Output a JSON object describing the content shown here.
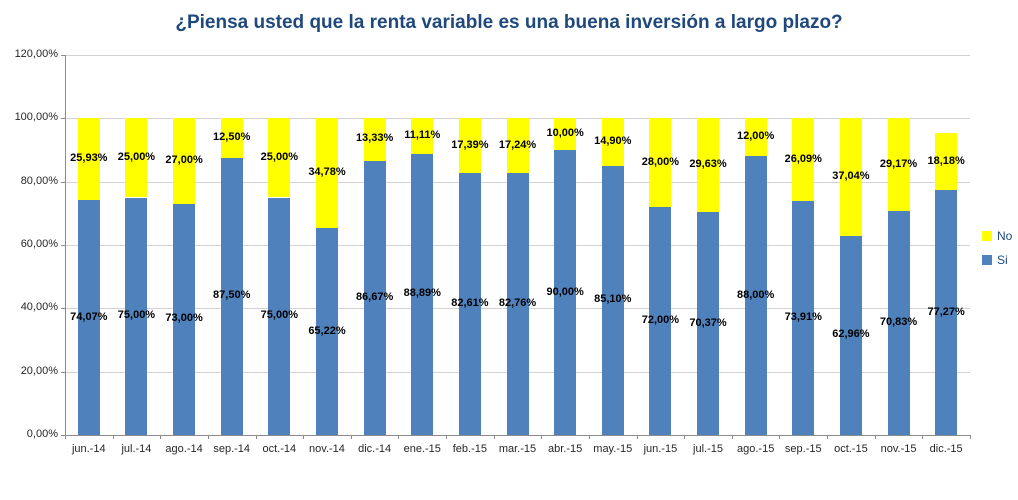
{
  "chart_data": {
    "type": "bar",
    "stacked": true,
    "title": "¿Piensa usted que la renta variable es una buena inversión a largo plazo?",
    "categories": [
      "jun.-14",
      "jul.-14",
      "ago.-14",
      "sep.-14",
      "oct.-14",
      "nov.-14",
      "dic.-14",
      "ene.-15",
      "feb.-15",
      "mar.-15",
      "abr.-15",
      "may.-15",
      "jun.-15",
      "jul.-15",
      "ago.-15",
      "sep.-15",
      "oct.-15",
      "nov.-15",
      "dic.-15"
    ],
    "series": [
      {
        "name": "Si",
        "color": "#4F81BD",
        "values": [
          74.07,
          75.0,
          73.0,
          87.5,
          75.0,
          65.22,
          86.67,
          88.89,
          82.61,
          82.76,
          90.0,
          85.1,
          72.0,
          70.37,
          88.0,
          73.91,
          62.96,
          70.83,
          77.27
        ],
        "labels": [
          "74,07%",
          "75,00%",
          "73,00%",
          "87,50%",
          "75,00%",
          "65,22%",
          "86,67%",
          "88,89%",
          "82,61%",
          "82,76%",
          "90,00%",
          "85,10%",
          "72,00%",
          "70,37%",
          "88,00%",
          "73,91%",
          "62,96%",
          "70,83%",
          "77,27%"
        ]
      },
      {
        "name": "No",
        "color": "#FFFF00",
        "values": [
          25.93,
          25.0,
          27.0,
          12.5,
          25.0,
          34.78,
          13.33,
          11.11,
          17.39,
          17.24,
          10.0,
          14.9,
          28.0,
          29.63,
          12.0,
          26.09,
          37.04,
          29.17,
          18.18
        ],
        "labels": [
          "25,93%",
          "25,00%",
          "27,00%",
          "12,50%",
          "25,00%",
          "34,78%",
          "13,33%",
          "11,11%",
          "17,39%",
          "17,24%",
          "10,00%",
          "14,90%",
          "28,00%",
          "29,63%",
          "12,00%",
          "26,09%",
          "37,04%",
          "29,17%",
          "18,18%"
        ]
      }
    ],
    "ylim": [
      0,
      120
    ],
    "ytick_step": 20,
    "ytick_labels": [
      "0,00%",
      "20,00%",
      "40,00%",
      "60,00%",
      "80,00%",
      "100,00%",
      "120,00%"
    ],
    "grid": true,
    "legend_position": "right",
    "legend_entries": [
      "No",
      "Si"
    ],
    "xlabel": "",
    "ylabel": ""
  },
  "colors": {
    "title_text": "#1F497D",
    "legend_text": "#1F497D",
    "axis_text": "#262626",
    "gridline": "#D2D2D2",
    "axis_line": "#8C8C8C",
    "value_label_text": "#000000",
    "background": "#FFFFFF",
    "si_bar": "#4F81BD",
    "no_bar": "#FFFF00"
  }
}
